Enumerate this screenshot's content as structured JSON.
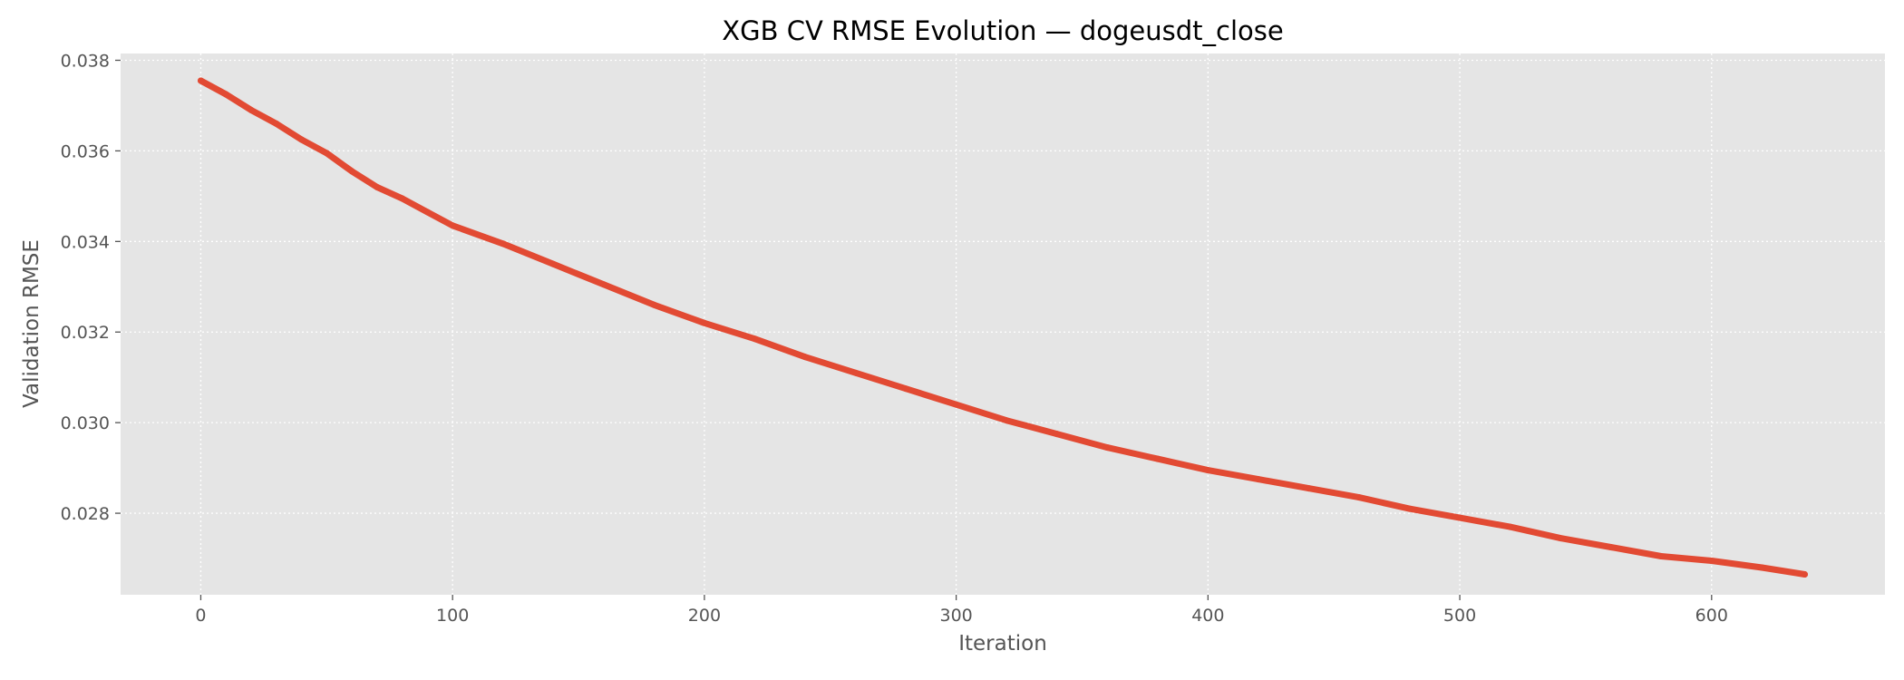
{
  "chart_data": {
    "type": "line",
    "title": "XGB CV RMSE Evolution — dogeusdt_close",
    "xlabel": "Iteration",
    "ylabel": "Validation RMSE",
    "xlim": [
      -31.85,
      668.85
    ],
    "ylim": [
      0.0262,
      0.03815
    ],
    "xticks": [
      0,
      100,
      200,
      300,
      400,
      500,
      600
    ],
    "yticks": [
      0.028,
      0.03,
      0.032,
      0.034,
      0.036,
      0.038
    ],
    "ytick_labels": [
      "0.028",
      "0.030",
      "0.032",
      "0.034",
      "0.036",
      "0.038"
    ],
    "grid": true,
    "legend": "none",
    "colors": {
      "line": "#E24A33",
      "plot_bg": "#E5E5E5",
      "grid": "#FFFFFF"
    },
    "series": [
      {
        "x": [
          0,
          10,
          20,
          30,
          40,
          50,
          60,
          70,
          80,
          90,
          100,
          120,
          140,
          160,
          180,
          200,
          220,
          240,
          260,
          280,
          300,
          320,
          340,
          360,
          380,
          400,
          420,
          440,
          460,
          480,
          500,
          520,
          540,
          560,
          580,
          600,
          620,
          637
        ],
        "y": [
          0.03755,
          0.03725,
          0.0369,
          0.0366,
          0.03625,
          0.03595,
          0.03555,
          0.0352,
          0.03495,
          0.03465,
          0.03435,
          0.03395,
          0.0335,
          0.03305,
          0.0326,
          0.0322,
          0.03185,
          0.03145,
          0.0311,
          0.03075,
          0.0304,
          0.03005,
          0.02975,
          0.02945,
          0.0292,
          0.02895,
          0.02875,
          0.02855,
          0.02835,
          0.0281,
          0.0279,
          0.0277,
          0.02745,
          0.02725,
          0.02705,
          0.02695,
          0.0268,
          0.02665
        ]
      }
    ]
  }
}
